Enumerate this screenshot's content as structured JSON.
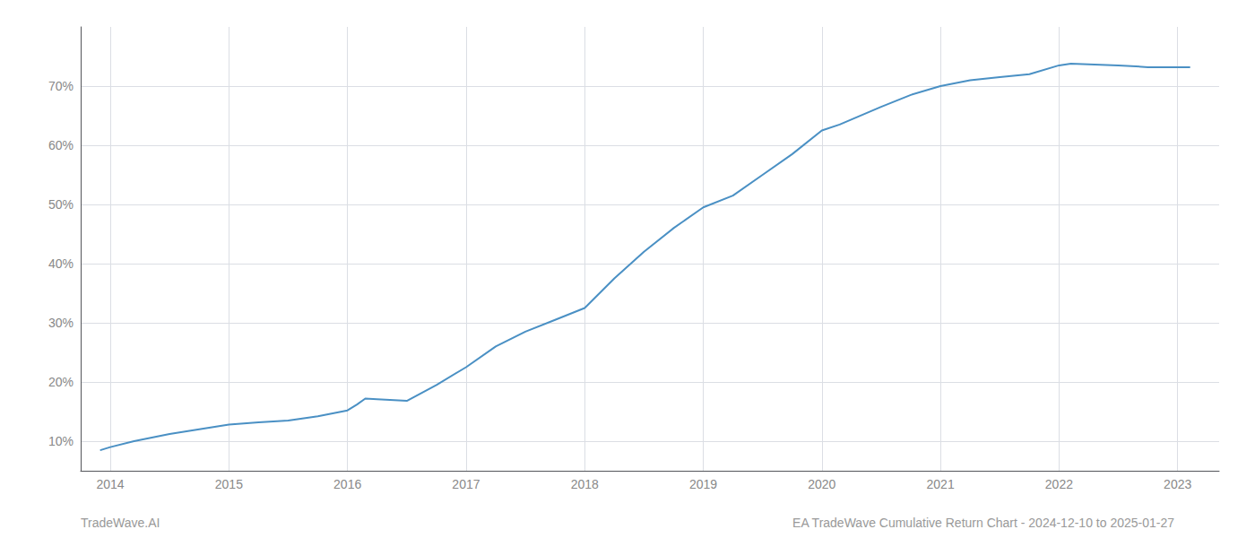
{
  "chart_data": {
    "type": "line",
    "x": [
      2013.92,
      2014.0,
      2014.2,
      2014.5,
      2014.75,
      2015.0,
      2015.25,
      2015.5,
      2015.75,
      2016.0,
      2016.08,
      2016.15,
      2016.25,
      2016.5,
      2016.75,
      2017.0,
      2017.25,
      2017.5,
      2017.75,
      2018.0,
      2018.25,
      2018.5,
      2018.75,
      2019.0,
      2019.25,
      2019.5,
      2019.75,
      2020.0,
      2020.15,
      2020.5,
      2020.75,
      2021.0,
      2021.25,
      2021.5,
      2021.75,
      2022.0,
      2022.1,
      2022.5,
      2022.75,
      2023.0,
      2023.1
    ],
    "values": [
      8.5,
      9.0,
      10.0,
      11.2,
      12.0,
      12.8,
      13.2,
      13.5,
      14.2,
      15.2,
      16.2,
      17.2,
      17.1,
      16.8,
      19.5,
      22.5,
      26.0,
      28.5,
      30.5,
      32.5,
      37.5,
      42.0,
      46.0,
      49.5,
      51.5,
      55.0,
      58.5,
      62.5,
      63.5,
      66.5,
      68.5,
      70.0,
      71.0,
      71.5,
      72.0,
      73.5,
      73.8,
      73.5,
      73.2,
      73.2,
      73.2
    ],
    "color": "#4a90c4",
    "xlim": [
      2013.75,
      2023.35
    ],
    "ylim": [
      5,
      80
    ],
    "xticks": [
      2014,
      2015,
      2016,
      2017,
      2018,
      2019,
      2020,
      2021,
      2022,
      2023
    ],
    "yticks": [
      {
        "value": 10,
        "label": "10%"
      },
      {
        "value": 20,
        "label": "20%"
      },
      {
        "value": 30,
        "label": "30%"
      },
      {
        "value": 40,
        "label": "40%"
      },
      {
        "value": 50,
        "label": "50%"
      },
      {
        "value": 60,
        "label": "60%"
      },
      {
        "value": 70,
        "label": "70%"
      }
    ],
    "grid": true,
    "annotations": [
      "TradeWave.AI",
      "EA TradeWave Cumulative Return Chart - 2024-12-10 to 2025-01-27"
    ]
  }
}
